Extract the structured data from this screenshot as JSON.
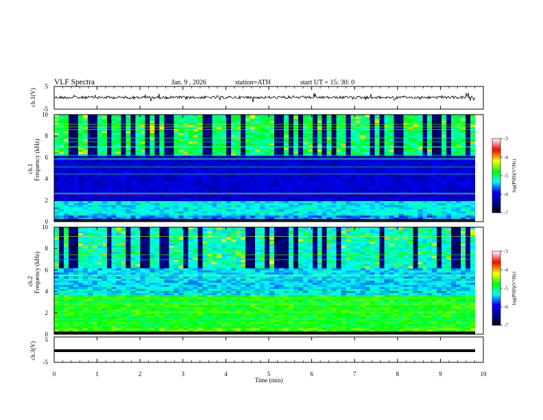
{
  "header": {
    "title": "VLF  Spectra",
    "date": "Jan. 9  , 2026",
    "station": "station=ATH",
    "start": "start  UT  =   15: 30: 0"
  },
  "chart_data": [
    {
      "type": "line",
      "panel": "ch1-waveform",
      "ylabel": "ch.1(V)",
      "ylim": [
        -5,
        5
      ],
      "yticks": [
        "5",
        "-5"
      ],
      "xlim": [
        0,
        10
      ],
      "note": "dense noisy waveform near 0 V"
    },
    {
      "type": "heatmap",
      "panel": "ch1-spectrogram",
      "ylabel_line1": "ch.1",
      "ylabel_line2": "Frequency  (kHz)",
      "ylim": [
        0,
        10
      ],
      "yticks": [
        "0",
        "2",
        "4",
        "6",
        "8",
        "10"
      ],
      "xlim": [
        0,
        10
      ],
      "colorbar": {
        "label": "log(PSD)(V²/Hz)",
        "range": [
          -7,
          -3
        ],
        "ticks": [
          "-3",
          "-4",
          "-5",
          "-6",
          "-7"
        ]
      }
    },
    {
      "type": "heatmap",
      "panel": "ch2-spectrogram",
      "ylabel_line1": "ch.2",
      "ylabel_line2": "Frequency  (kHz)",
      "ylim": [
        0,
        10
      ],
      "yticks": [
        "0",
        "2",
        "4",
        "6",
        "8",
        "10"
      ],
      "xlim": [
        0,
        10
      ],
      "colorbar": {
        "label": "log(PSD)(V²/Hz)",
        "range": [
          -7,
          -3
        ],
        "ticks": [
          "-3",
          "-4",
          "-5",
          "-6",
          "-7"
        ]
      }
    },
    {
      "type": "line",
      "panel": "ch3-waveform",
      "ylabel": "ch.3(V)",
      "ylim": [
        -5,
        5
      ],
      "yticks": [
        "5",
        "-5"
      ],
      "xlim": [
        0,
        10
      ],
      "note": "flat thick line near -1 V"
    }
  ],
  "xaxis": {
    "label": "Time  (min)",
    "ticks": [
      "0",
      "1",
      "2",
      "3",
      "4",
      "5",
      "6",
      "7",
      "8",
      "9",
      "10"
    ]
  },
  "colors": {
    "low": "#00008b",
    "mid_low": "#0050ff",
    "mid": "#00ffff",
    "mid_high": "#00ff00",
    "high": "#ffff00",
    "top": "#ff0000"
  }
}
